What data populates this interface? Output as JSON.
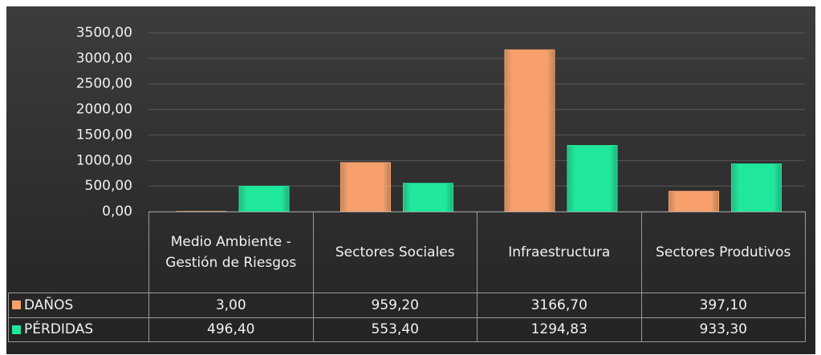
{
  "chart_data": {
    "type": "bar",
    "categories": [
      "Medio Ambiente - Gestión de Riesgos",
      "Sectores Sociales",
      "Infraestructura",
      "Sectores Produtivos"
    ],
    "series": [
      {
        "name": "DAÑOS",
        "color": "#f7a06c",
        "values": [
          3.0,
          959.2,
          3166.7,
          397.1
        ],
        "value_labels": [
          "3,00",
          "959,20",
          "3166,70",
          "397,10"
        ]
      },
      {
        "name": "PÉRDIDAS",
        "color": "#1fe79c",
        "values": [
          496.4,
          553.4,
          1294.83,
          933.3
        ],
        "value_labels": [
          "496,40",
          "553,40",
          "1294,83",
          "933,30"
        ]
      }
    ],
    "ylim": [
      0,
      3500
    ],
    "yticks": [
      {
        "value": 0,
        "label": "0,00"
      },
      {
        "value": 500,
        "label": "500,00"
      },
      {
        "value": 1000,
        "label": "1000,00"
      },
      {
        "value": 1500,
        "label": "1500,00"
      },
      {
        "value": 2000,
        "label": "2000,00"
      },
      {
        "value": 2500,
        "label": "2500,00"
      },
      {
        "value": 3000,
        "label": "3000,00"
      },
      {
        "value": 3500,
        "label": "3500,00"
      }
    ],
    "grid": true
  }
}
